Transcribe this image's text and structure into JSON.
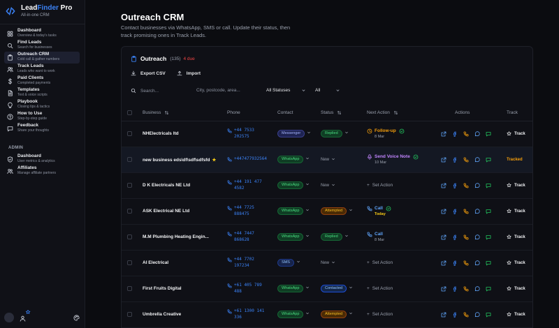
{
  "app": {
    "name_a": "Lead",
    "name_b": "Finder",
    "name_c": " Pro",
    "tagline": "All-in-one CRM",
    "accent": "#3b82f6"
  },
  "sidebar": {
    "items": [
      {
        "label": "Dashboard",
        "sub": "Overview & today's tasks",
        "icon": "dashboard-icon",
        "active": false
      },
      {
        "label": "Find Leads",
        "sub": "Search for businesses",
        "icon": "search-icon",
        "active": false
      },
      {
        "label": "Outreach CRM",
        "sub": "Cold call & gather numbers",
        "icon": "clipboard-icon",
        "active": true
      },
      {
        "label": "Track Leads",
        "sub": "Leads who want to work",
        "icon": "users-icon",
        "active": false
      },
      {
        "label": "Paid Clients",
        "sub": "Completed payments",
        "icon": "dollar-icon",
        "active": false
      },
      {
        "label": "Templates",
        "sub": "Text & voice scripts",
        "icon": "file-icon",
        "active": false
      },
      {
        "label": "Playbook",
        "sub": "Closing tips & tactics",
        "icon": "lightbulb-icon",
        "active": false
      },
      {
        "label": "How to Use",
        "sub": "Step-by-step guide",
        "icon": "help-icon",
        "active": false
      },
      {
        "label": "Feedback",
        "sub": "Share your thoughts",
        "icon": "feedback-icon",
        "active": false
      }
    ],
    "admin_label": "ADMIN",
    "admin_items": [
      {
        "label": "Dashboard",
        "sub": "User metrics & analytics",
        "icon": "shield-icon"
      },
      {
        "label": "Affiliates",
        "sub": "Manage affiliate partners",
        "icon": "people-icon"
      }
    ]
  },
  "header": {
    "title": "Outreach CRM",
    "description": "Contact businesses via WhatsApp, SMS or call. Update their status, then track promising ones in Track Leads."
  },
  "card": {
    "title": "Outreach",
    "count": "(135)",
    "due": "4 due",
    "export_label": "Export CSV",
    "import_label": "Import",
    "search_placeholder": "Search...",
    "location_placeholder": "City, postcode, area...",
    "status_filter": "All Statuses",
    "other_filter": "All"
  },
  "table": {
    "columns": {
      "business": "Business",
      "phone": "Phone",
      "contact": "Contact",
      "status": "Status",
      "next_action": "Next Action",
      "actions": "Actions",
      "track": "Track"
    },
    "rows": [
      {
        "business": "NHElectricals ltd",
        "starred": false,
        "phone1": "+44 7533",
        "phone2": "202575",
        "contact": "Messenger",
        "contact_kind": "messenger",
        "status": "Replied",
        "status_kind": "replied",
        "na_kind": "followup",
        "na_label": "Follow-up",
        "na_date": "8 Mar",
        "na_done": true,
        "track": "Track",
        "tracked": false,
        "highlight": false
      },
      {
        "business": "new business eds\\df\\sdf\\sdfsfd",
        "starred": true,
        "phone1": "+447477932564",
        "phone2": "",
        "contact": "WhatsApp",
        "contact_kind": "whatsapp",
        "status": "New",
        "status_kind": "plain",
        "na_kind": "voice",
        "na_label": "Send Voice Note",
        "na_date": "10 Mar",
        "na_done": true,
        "track": "Tracked",
        "tracked": true,
        "highlight": true
      },
      {
        "business": "D K Electricals NE Ltd",
        "starred": false,
        "phone1": "+44 191 477",
        "phone2": "4582",
        "contact": "WhatsApp",
        "contact_kind": "whatsapp",
        "status": "New",
        "status_kind": "plain",
        "na_kind": "set",
        "na_label": "Set Action",
        "na_date": "",
        "na_done": false,
        "track": "Track",
        "tracked": false,
        "highlight": false
      },
      {
        "business": "ASK Electrical NE Ltd",
        "starred": false,
        "phone1": "+44 7725",
        "phone2": "888475",
        "contact": "WhatsApp",
        "contact_kind": "whatsapp",
        "status": "Attempted",
        "status_kind": "attempted",
        "na_kind": "call",
        "na_label": "Call",
        "na_date": "Today",
        "na_done": true,
        "track": "Track",
        "tracked": false,
        "highlight": false
      },
      {
        "business": "M.M Plumbing Heating Engin...",
        "starred": false,
        "phone1": "+44 7447",
        "phone2": "868628",
        "contact": "WhatsApp",
        "contact_kind": "whatsapp",
        "status": "Replied",
        "status_kind": "replied",
        "na_kind": "call",
        "na_label": "Call",
        "na_date": "8 Mar",
        "na_done": false,
        "track": "Track",
        "tracked": false,
        "highlight": false
      },
      {
        "business": "AI Electrical",
        "starred": false,
        "phone1": "+44 7702",
        "phone2": "197234",
        "contact": "SMS",
        "contact_kind": "sms",
        "status": "New",
        "status_kind": "plain",
        "na_kind": "set",
        "na_label": "Set Action",
        "na_date": "",
        "na_done": false,
        "track": "Track",
        "tracked": false,
        "highlight": false
      },
      {
        "business": "First Fruits Digital",
        "starred": false,
        "phone1": "+61 405 789",
        "phone2": "488",
        "contact": "WhatsApp",
        "contact_kind": "whatsapp",
        "status": "Contacted",
        "status_kind": "contacted",
        "na_kind": "set",
        "na_label": "Set Action",
        "na_date": "",
        "na_done": false,
        "track": "Track",
        "tracked": false,
        "highlight": false
      },
      {
        "business": "Umbrella Creative",
        "starred": false,
        "phone1": "+61 1300 141",
        "phone2": "336",
        "contact": "WhatsApp",
        "contact_kind": "whatsapp",
        "status": "Attempted",
        "status_kind": "attempted",
        "na_kind": "set",
        "na_label": "Set Action",
        "na_date": "",
        "na_done": false,
        "track": "Track",
        "tracked": false,
        "highlight": false
      }
    ]
  },
  "colors": {
    "followup": "#f59e0b",
    "voice": "#c084fc",
    "call": "#60a5fa",
    "tracked": "#f59e0b"
  }
}
